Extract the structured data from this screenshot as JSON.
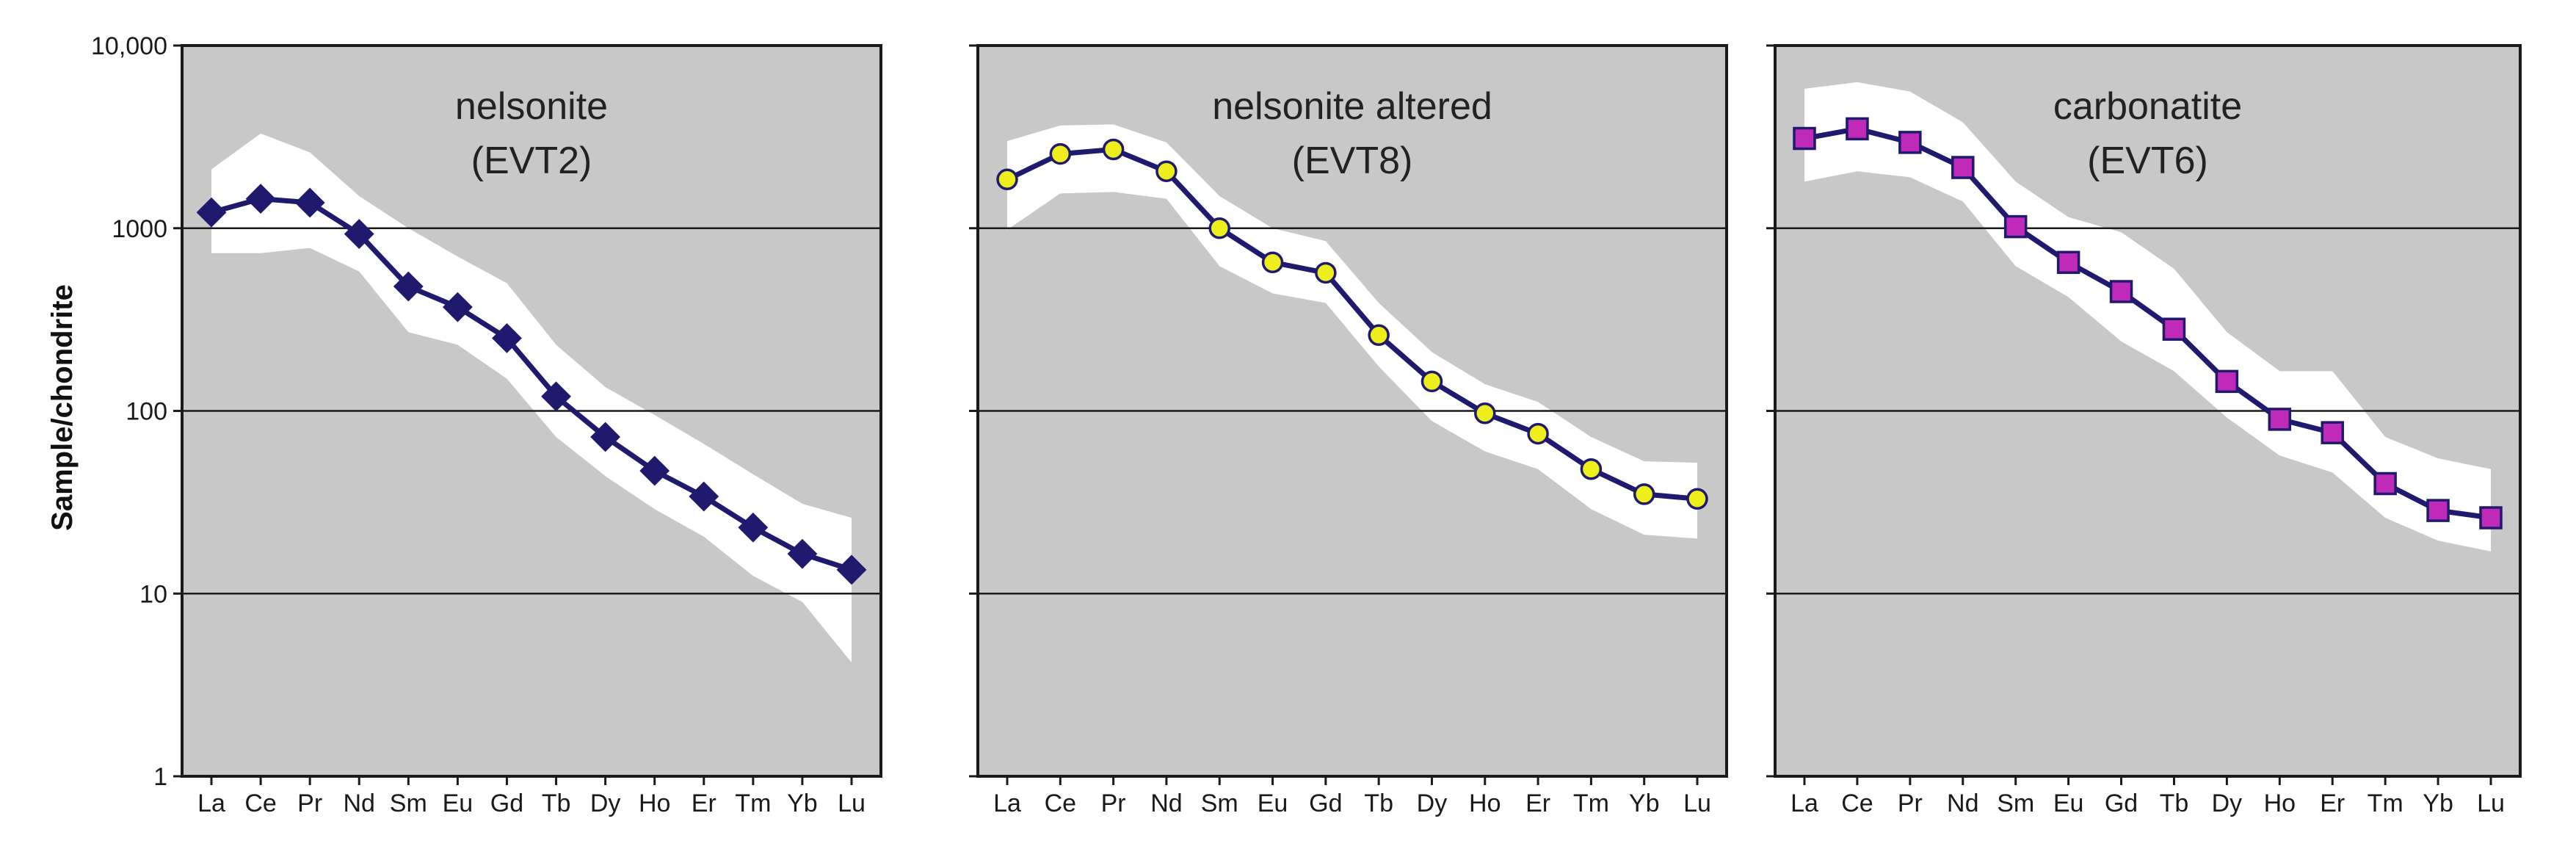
{
  "figure": {
    "ylabel": "Sample/chondrite",
    "y_scale": "log",
    "ylim": [
      1,
      10000
    ],
    "y_ticks": [
      {
        "value": 1,
        "label": "1"
      },
      {
        "value": 10,
        "label": "10"
      },
      {
        "value": 100,
        "label": "100"
      },
      {
        "value": 1000,
        "label": "1000"
      },
      {
        "value": 10000,
        "label": "10,000"
      }
    ],
    "colors": {
      "plot_bg": "#c8c8c8",
      "envelope": "#ffffff",
      "line": "#1f1a6e",
      "gridline": "#1a1a1a",
      "frame": "#1a1a1a"
    }
  },
  "chart_data": [
    {
      "type": "line",
      "title_line1": "nelsonite",
      "title_line2": "(EVT2)",
      "categories": [
        "La",
        "Ce",
        "Pr",
        "Nd",
        "Sm",
        "Eu",
        "Gd",
        "Tb",
        "Dy",
        "Ho",
        "Er",
        "Tm",
        "Yb",
        "Lu"
      ],
      "series": [
        {
          "name": "EVT2",
          "marker": "diamond",
          "marker_color": "#1f1a6e",
          "values": [
            1220,
            1450,
            1380,
            930,
            480,
            370,
            250,
            120,
            72,
            47,
            34,
            23,
            16.5,
            13.5
          ]
        }
      ],
      "envelope_upper": [
        2100,
        3300,
        2600,
        1500,
        1000,
        700,
        500,
        230,
        135,
        95,
        66,
        45,
        31,
        26
      ],
      "envelope_lower": [
        730,
        730,
        780,
        580,
        270,
        230,
        150,
        72,
        44,
        29,
        20.5,
        12.5,
        9,
        4.2
      ]
    },
    {
      "type": "line",
      "title_line1": "nelsonite altered",
      "title_line2": "(EVT8)",
      "categories": [
        "La",
        "Ce",
        "Pr",
        "Nd",
        "Sm",
        "Eu",
        "Gd",
        "Tb",
        "Dy",
        "Ho",
        "Er",
        "Tm",
        "Yb",
        "Lu"
      ],
      "series": [
        {
          "name": "EVT8",
          "marker": "circle",
          "marker_color": "#eeee1c",
          "values": [
            1850,
            2550,
            2700,
            2050,
            1000,
            650,
            570,
            260,
            145,
            97,
            75,
            48,
            35,
            33
          ]
        }
      ],
      "envelope_upper": [
        3000,
        3650,
        3700,
        2950,
        1500,
        1000,
        850,
        390,
        210,
        140,
        112,
        72,
        53,
        52
      ],
      "envelope_lower": [
        980,
        1550,
        1580,
        1450,
        620,
        440,
        390,
        175,
        88,
        60,
        48,
        29,
        21,
        20
      ]
    },
    {
      "type": "line",
      "title_line1": "carbonatite",
      "title_line2": "(EVT6)",
      "categories": [
        "La",
        "Ce",
        "Pr",
        "Nd",
        "Sm",
        "Eu",
        "Gd",
        "Tb",
        "Dy",
        "Ho",
        "Er",
        "Tm",
        "Yb",
        "Lu"
      ],
      "series": [
        {
          "name": "EVT6",
          "marker": "square",
          "marker_color": "#c02ab8",
          "values": [
            3100,
            3500,
            2950,
            2150,
            1020,
            650,
            450,
            280,
            145,
            90,
            76,
            40,
            28.5,
            26
          ]
        }
      ],
      "envelope_upper": [
        5800,
        6300,
        5600,
        3800,
        1800,
        1150,
        950,
        600,
        270,
        165,
        165,
        72,
        55,
        48
      ],
      "envelope_lower": [
        1800,
        2050,
        1900,
        1400,
        620,
        420,
        240,
        165,
        92,
        57,
        46,
        26,
        19.5,
        17
      ]
    }
  ]
}
